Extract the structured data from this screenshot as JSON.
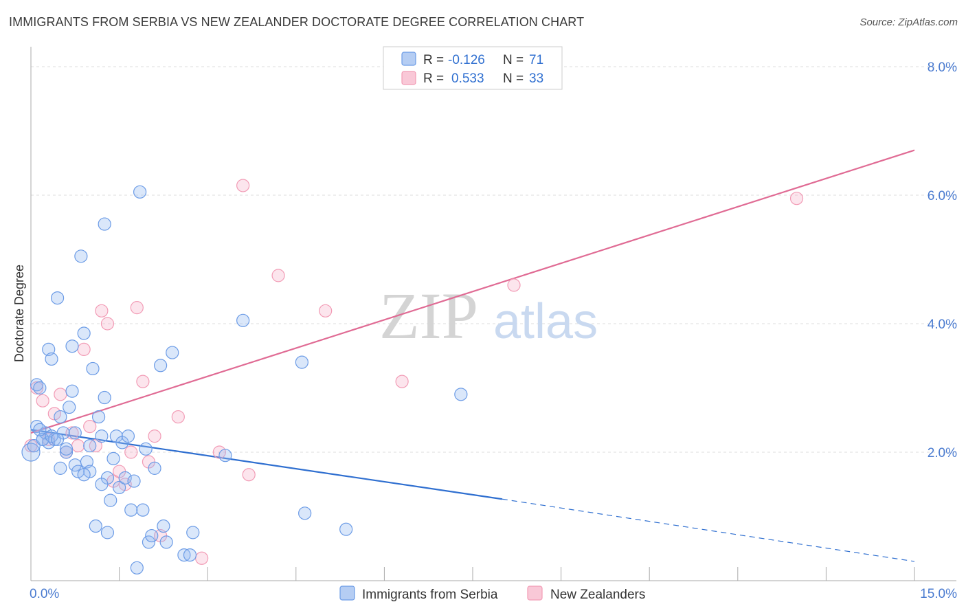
{
  "chart_data": {
    "type": "scatter",
    "title": "IMMIGRANTS FROM SERBIA VS NEW ZEALANDER DOCTORATE DEGREE CORRELATION CHART",
    "source": "Source: ZipAtlas.com",
    "ylabel": "Doctorate Degree",
    "xlim": [
      0,
      15
    ],
    "ylim": [
      0,
      8
    ],
    "x_tick_labels": [
      "0.0%",
      "15.0%"
    ],
    "y_ticks": [
      2,
      4,
      6,
      8
    ],
    "y_tick_labels": [
      "2.0%",
      "4.0%",
      "6.0%",
      "8.0%"
    ],
    "watermark": {
      "zip": "ZIP",
      "atlas": "atlas"
    },
    "legend": {
      "entries": [
        {
          "r_label": "R =",
          "r_value": "-0.126",
          "n_label": "N =",
          "n_value": "71"
        },
        {
          "r_label": "R =",
          "r_value": "0.533",
          "n_label": "N =",
          "n_value": "33"
        }
      ]
    },
    "colors": {
      "serbia": "#6b9be6",
      "serbia_line": "#2f6fd0",
      "nz": "#f29bb5",
      "nz_line": "#e06b94"
    },
    "series": [
      {
        "name": "Immigrants from Serbia",
        "trend": {
          "x0": 0,
          "y0": 2.35,
          "x1": 8.0,
          "y1": 1.27,
          "dash_to_x": 15,
          "dash_to_y": 0.3
        },
        "points": [
          [
            0.0,
            2.0
          ],
          [
            0.05,
            2.1
          ],
          [
            0.1,
            2.4
          ],
          [
            0.1,
            3.05
          ],
          [
            0.15,
            3.0
          ],
          [
            0.2,
            2.2
          ],
          [
            0.25,
            2.3
          ],
          [
            0.3,
            2.15
          ],
          [
            0.3,
            3.6
          ],
          [
            0.35,
            3.45
          ],
          [
            0.4,
            2.2
          ],
          [
            0.45,
            4.4
          ],
          [
            0.5,
            2.55
          ],
          [
            0.5,
            1.75
          ],
          [
            0.55,
            2.3
          ],
          [
            0.6,
            2.0
          ],
          [
            0.65,
            2.7
          ],
          [
            0.7,
            3.65
          ],
          [
            0.7,
            2.95
          ],
          [
            0.75,
            1.8
          ],
          [
            0.8,
            1.7
          ],
          [
            0.85,
            5.05
          ],
          [
            0.9,
            3.85
          ],
          [
            0.95,
            1.85
          ],
          [
            1.0,
            1.7
          ],
          [
            1.05,
            3.3
          ],
          [
            1.1,
            0.85
          ],
          [
            1.15,
            2.55
          ],
          [
            1.2,
            2.25
          ],
          [
            1.25,
            2.85
          ],
          [
            1.3,
            0.75
          ],
          [
            1.3,
            1.6
          ],
          [
            1.35,
            1.25
          ],
          [
            1.4,
            1.9
          ],
          [
            1.45,
            2.25
          ],
          [
            1.5,
            1.45
          ],
          [
            1.55,
            2.15
          ],
          [
            1.6,
            1.6
          ],
          [
            1.65,
            2.25
          ],
          [
            1.7,
            1.1
          ],
          [
            1.75,
            1.55
          ],
          [
            1.8,
            0.2
          ],
          [
            1.85,
            6.05
          ],
          [
            1.9,
            1.1
          ],
          [
            1.95,
            2.05
          ],
          [
            2.0,
            0.6
          ],
          [
            2.05,
            0.7
          ],
          [
            2.1,
            1.75
          ],
          [
            2.2,
            3.35
          ],
          [
            2.25,
            0.85
          ],
          [
            2.3,
            0.6
          ],
          [
            2.4,
            3.55
          ],
          [
            2.6,
            0.4
          ],
          [
            2.7,
            0.4
          ],
          [
            2.75,
            0.75
          ],
          [
            0.2,
            2.2
          ],
          [
            0.35,
            2.25
          ],
          [
            0.6,
            2.05
          ],
          [
            0.9,
            1.65
          ],
          [
            1.0,
            2.1
          ],
          [
            1.2,
            1.5
          ],
          [
            0.15,
            2.35
          ],
          [
            3.3,
            1.95
          ],
          [
            3.6,
            4.05
          ],
          [
            4.6,
            3.4
          ],
          [
            4.65,
            1.05
          ],
          [
            5.35,
            0.8
          ],
          [
            7.3,
            2.9
          ],
          [
            1.25,
            5.55
          ],
          [
            0.75,
            2.3
          ],
          [
            0.45,
            2.2
          ]
        ]
      },
      {
        "name": "New Zealanders",
        "trend": {
          "x0": 0,
          "y0": 2.3,
          "x1": 15,
          "y1": 6.7
        },
        "points": [
          [
            0.0,
            2.1
          ],
          [
            0.1,
            3.0
          ],
          [
            0.2,
            2.8
          ],
          [
            0.3,
            2.2
          ],
          [
            0.4,
            2.6
          ],
          [
            0.5,
            2.9
          ],
          [
            0.6,
            2.0
          ],
          [
            0.7,
            2.3
          ],
          [
            0.8,
            2.1
          ],
          [
            0.9,
            3.6
          ],
          [
            1.0,
            2.4
          ],
          [
            1.1,
            2.1
          ],
          [
            1.2,
            4.2
          ],
          [
            1.3,
            4.0
          ],
          [
            1.4,
            1.55
          ],
          [
            1.5,
            1.7
          ],
          [
            1.6,
            1.5
          ],
          [
            1.7,
            2.0
          ],
          [
            1.8,
            4.25
          ],
          [
            1.9,
            3.1
          ],
          [
            2.0,
            1.85
          ],
          [
            2.1,
            2.25
          ],
          [
            2.2,
            0.7
          ],
          [
            2.5,
            2.55
          ],
          [
            2.9,
            0.35
          ],
          [
            3.2,
            2.0
          ],
          [
            3.6,
            6.15
          ],
          [
            3.7,
            1.65
          ],
          [
            4.2,
            4.75
          ],
          [
            5.0,
            4.2
          ],
          [
            6.3,
            3.1
          ],
          [
            8.2,
            4.6
          ],
          [
            13.0,
            5.95
          ]
        ]
      }
    ]
  }
}
